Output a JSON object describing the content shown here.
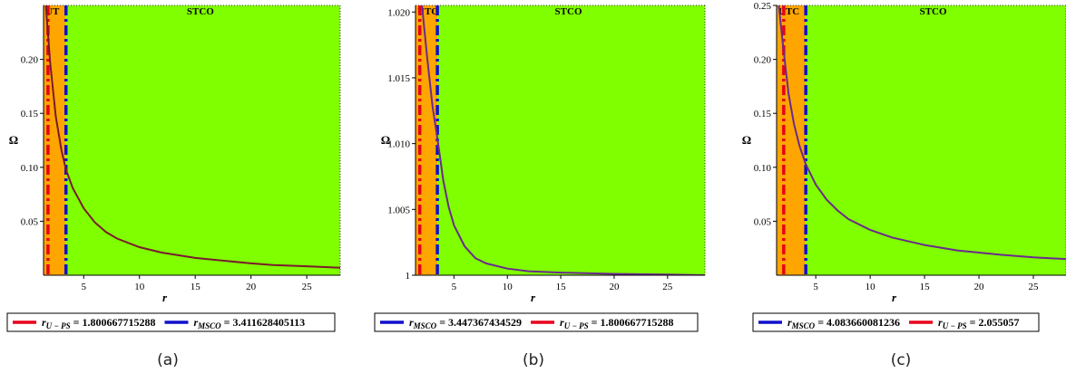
{
  "chart_data": [
    {
      "type": "line",
      "caption": "(a)",
      "xlabel": "r",
      "ylabel": "Ω",
      "xlim": [
        1.4,
        28
      ],
      "ylim": [
        0,
        0.25
      ],
      "xticks": [
        5,
        10,
        15,
        20,
        25
      ],
      "yticks": [
        0.05,
        0.1,
        0.15,
        0.2
      ],
      "ytick_labels": [
        "0.05",
        "0.10",
        "0.15",
        "0.20"
      ],
      "regions": [
        {
          "label": "UT",
          "from": 1.4,
          "to": 3.411628405113,
          "color": "#ffa500"
        },
        {
          "label": "STCO",
          "from": 3.411628405113,
          "to": 28,
          "color": "#80ff00"
        }
      ],
      "vlines": [
        {
          "x": 1.800667715288,
          "color": "#e8001c",
          "style": "dashdot"
        },
        {
          "x": 3.411628405113,
          "color": "#1010cc",
          "style": "dashdot"
        }
      ],
      "curve": {
        "color": "#7a1a2e",
        "points": [
          [
            1.6,
            0.25
          ],
          [
            2,
            0.196
          ],
          [
            2.5,
            0.147
          ],
          [
            3,
            0.116
          ],
          [
            3.4116,
            0.098
          ],
          [
            4,
            0.081
          ],
          [
            5,
            0.062
          ],
          [
            6,
            0.049
          ],
          [
            7,
            0.04
          ],
          [
            8,
            0.034
          ],
          [
            10,
            0.026
          ],
          [
            12,
            0.021
          ],
          [
            15,
            0.016
          ],
          [
            18,
            0.013
          ],
          [
            20,
            0.011
          ],
          [
            22,
            0.0095
          ],
          [
            25,
            0.0083
          ],
          [
            28,
            0.007
          ]
        ]
      },
      "legend": [
        {
          "symbol": "r",
          "sub": "U − PS",
          "value": " = 1.800667715288",
          "color": "#e8001c"
        },
        {
          "symbol": "r",
          "sub": "MSCO",
          "value": " = 3.411628405113",
          "color": "#1010cc"
        }
      ]
    },
    {
      "type": "line",
      "caption": "(b)",
      "xlabel": "r",
      "ylabel": "Ω",
      "xlim": [
        1.4,
        28.5
      ],
      "ylim": [
        1.0,
        1.0205
      ],
      "xticks": [
        5,
        10,
        15,
        20,
        25
      ],
      "yticks": [
        1.0,
        1.005,
        1.01,
        1.015,
        1.02
      ],
      "ytick_labels": [
        "1",
        "1.005",
        "1.010",
        "1.015",
        "1.020"
      ],
      "regions": [
        {
          "label": "UTC",
          "from": 1.4,
          "to": 3.447367434529,
          "color": "#ffa500"
        },
        {
          "label": "STCO",
          "from": 3.447367434529,
          "to": 28.5,
          "color": "#80ff00"
        }
      ],
      "vlines": [
        {
          "x": 1.800667715288,
          "color": "#e8001c",
          "style": "dashdot"
        },
        {
          "x": 3.447367434529,
          "color": "#1010cc",
          "style": "dashdot"
        }
      ],
      "curve": {
        "color": "#6b2a8c",
        "points": [
          [
            2,
            1.0205
          ],
          [
            2.5,
            1.0165
          ],
          [
            3,
            1.0128
          ],
          [
            3.45,
            1.0104
          ],
          [
            4,
            1.0072
          ],
          [
            4.5,
            1.0052
          ],
          [
            5,
            1.0038
          ],
          [
            6,
            1.0022
          ],
          [
            7,
            1.0013
          ],
          [
            8,
            1.0009
          ],
          [
            10,
            1.0005
          ],
          [
            12,
            1.0003
          ],
          [
            15,
            1.0002
          ],
          [
            20,
            1.0001
          ],
          [
            25,
            1.00005
          ],
          [
            28.5,
            1.0
          ]
        ]
      },
      "legend": [
        {
          "symbol": "r",
          "sub": "MSCO",
          "value": " = 3.447367434529",
          "color": "#1010cc"
        },
        {
          "symbol": "r",
          "sub": "U − PS",
          "value": " = 1.800667715288",
          "color": "#e8001c"
        }
      ]
    },
    {
      "type": "line",
      "caption": "(c)",
      "xlabel": "r",
      "ylabel": "Ω",
      "xlim": [
        1.4,
        28
      ],
      "ylim": [
        0,
        0.25
      ],
      "xticks": [
        5,
        10,
        15,
        20,
        25
      ],
      "yticks": [
        0.05,
        0.1,
        0.15,
        0.2,
        0.25
      ],
      "ytick_labels": [
        "0.05",
        "0.10",
        "0.15",
        "0.20",
        "0.25"
      ],
      "regions": [
        {
          "label": "UTC",
          "from": 1.4,
          "to": 4.083660081236,
          "color": "#ffa500"
        },
        {
          "label": "STCO",
          "from": 4.083660081236,
          "to": 28,
          "color": "#80ff00"
        }
      ],
      "vlines": [
        {
          "x": 2.055057,
          "color": "#e8001c",
          "style": "dashdot"
        },
        {
          "x": 4.083660081236,
          "color": "#1010cc",
          "style": "dashdot"
        }
      ],
      "curve": {
        "color": "#6b2a8c",
        "points": [
          [
            1.6,
            0.25
          ],
          [
            2,
            0.212
          ],
          [
            2.5,
            0.168
          ],
          [
            3,
            0.14
          ],
          [
            3.5,
            0.12
          ],
          [
            4.08,
            0.103
          ],
          [
            5,
            0.084
          ],
          [
            6,
            0.07
          ],
          [
            7,
            0.06
          ],
          [
            8,
            0.052
          ],
          [
            10,
            0.042
          ],
          [
            12,
            0.035
          ],
          [
            15,
            0.028
          ],
          [
            18,
            0.023
          ],
          [
            20,
            0.021
          ],
          [
            22,
            0.019
          ],
          [
            25,
            0.0165
          ],
          [
            28,
            0.015
          ]
        ]
      },
      "legend": [
        {
          "symbol": "r",
          "sub": "MSCO",
          "value": " = 4.083660081236",
          "color": "#1010cc"
        },
        {
          "symbol": "r",
          "sub": "U − PS",
          "value": " = 2.055057",
          "color": "#e8001c"
        }
      ]
    }
  ]
}
